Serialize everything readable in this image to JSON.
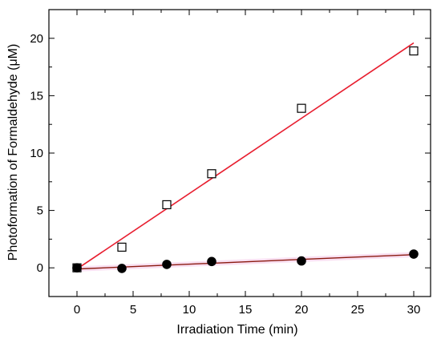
{
  "chart_data": {
    "type": "scatter",
    "title": "",
    "xlabel": "Irradiation Time (min)",
    "ylabel": "Photoformation of Formaldehyde (μM)",
    "xlim": [
      -2.5,
      31.5
    ],
    "ylim": [
      -2.5,
      22.5
    ],
    "xticks": [
      0,
      5,
      10,
      15,
      20,
      25,
      30
    ],
    "yticks": [
      0,
      5,
      10,
      15,
      20
    ],
    "grid": false,
    "series": [
      {
        "marker": "open-square",
        "color": "#000000",
        "points": [
          {
            "x": 0,
            "y": 0
          },
          {
            "x": 4,
            "y": 1.8
          },
          {
            "x": 8,
            "y": 5.5
          },
          {
            "x": 12,
            "y": 8.2
          },
          {
            "x": 20,
            "y": 13.9
          },
          {
            "x": 30,
            "y": 18.9
          }
        ],
        "fit": {
          "x": [
            0,
            30
          ],
          "y": [
            -0.1,
            19.6
          ],
          "color": "#e8141c"
        }
      },
      {
        "marker": "filled-circle",
        "color": "#000000",
        "points": [
          {
            "x": 0,
            "y": 0
          },
          {
            "x": 4,
            "y": -0.05
          },
          {
            "x": 8,
            "y": 0.3
          },
          {
            "x": 12,
            "y": 0.55
          },
          {
            "x": 20,
            "y": 0.6
          },
          {
            "x": 30,
            "y": 1.2
          }
        ],
        "fit": {
          "x": [
            0,
            30
          ],
          "y": [
            -0.1,
            1.15
          ],
          "color": "#8b1a10"
        }
      }
    ]
  }
}
